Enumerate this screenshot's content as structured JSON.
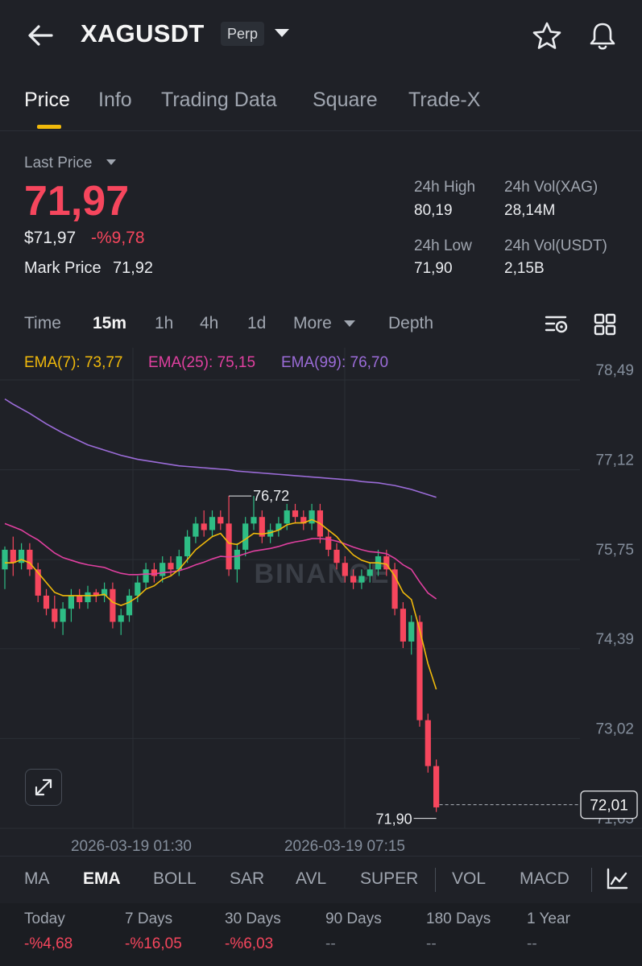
{
  "header": {
    "symbol": "XAGUSDT",
    "contract_badge": "Perp",
    "icons": [
      "back-arrow-icon",
      "chevron-down-icon",
      "star-icon",
      "bell-icon"
    ]
  },
  "tabs": [
    {
      "label": "Price",
      "active": true
    },
    {
      "label": "Info"
    },
    {
      "label": "Trading Data"
    },
    {
      "label": "Square"
    },
    {
      "label": "Trade-X"
    }
  ],
  "price": {
    "last_price_label": "Last Price",
    "last_price": "71,97",
    "usd_price": "$71,97",
    "change_pct": "-%9,78",
    "mark_price_label": "Mark Price",
    "mark_price": "71,92"
  },
  "stats": {
    "high_label": "24h High",
    "high": "80,19",
    "low_label": "24h Low",
    "low": "71,90",
    "vol_base_label": "24h Vol(XAG)",
    "vol_base": "28,14M",
    "vol_quote_label": "24h Vol(USDT)",
    "vol_quote": "2,15B"
  },
  "timeframes": [
    {
      "label": "Time"
    },
    {
      "label": "15m",
      "active": true
    },
    {
      "label": "1h"
    },
    {
      "label": "4h"
    },
    {
      "label": "1d"
    },
    {
      "label": "More"
    },
    {
      "label": "Depth"
    }
  ],
  "ema_legend": {
    "ema7": "EMA(7): 73,77",
    "ema25": "EMA(25): 75,15",
    "ema99": "EMA(99): 76,70"
  },
  "chart_data": {
    "type": "candlestick",
    "y_ticks": [
      "78,49",
      "77,12",
      "75,75",
      "74,39",
      "73,02",
      "71,65"
    ],
    "ylim": [
      71.65,
      78.49
    ],
    "x_ticks": [
      "2026-03-19 01:30",
      "2026-03-19 07:15"
    ],
    "high_annotation": "76,72",
    "low_annotation": "71,90",
    "current_price": "72,01",
    "watermark": "BINANCE",
    "candles": [
      [
        75.6,
        75.9,
        75.3,
        75.95
      ],
      [
        75.9,
        75.7,
        75.5,
        76.1
      ],
      [
        75.7,
        75.9,
        75.6,
        76.0
      ],
      [
        75.9,
        75.6,
        75.5,
        76.0
      ],
      [
        75.6,
        75.2,
        75.1,
        75.7
      ],
      [
        75.2,
        75.0,
        74.9,
        75.3
      ],
      [
        75.0,
        74.8,
        74.7,
        75.2
      ],
      [
        74.8,
        75.0,
        74.6,
        75.1
      ],
      [
        75.0,
        75.2,
        74.8,
        75.3
      ],
      [
        75.2,
        75.1,
        75.0,
        75.3
      ],
      [
        75.1,
        75.25,
        75.0,
        75.35
      ],
      [
        75.25,
        75.2,
        75.1,
        75.3
      ],
      [
        75.2,
        75.3,
        75.1,
        75.4
      ],
      [
        75.3,
        74.8,
        74.7,
        75.4
      ],
      [
        74.8,
        74.9,
        74.6,
        75.0
      ],
      [
        74.9,
        75.2,
        74.8,
        75.3
      ],
      [
        75.2,
        75.4,
        75.1,
        75.5
      ],
      [
        75.4,
        75.6,
        75.3,
        75.7
      ],
      [
        75.6,
        75.5,
        75.4,
        75.7
      ],
      [
        75.5,
        75.7,
        75.4,
        75.8
      ],
      [
        75.7,
        75.6,
        75.5,
        75.8
      ],
      [
        75.6,
        75.8,
        75.5,
        75.9
      ],
      [
        75.8,
        76.1,
        75.7,
        76.2
      ],
      [
        76.1,
        76.3,
        76.0,
        76.4
      ],
      [
        76.3,
        76.2,
        76.1,
        76.5
      ],
      [
        76.2,
        76.4,
        76.1,
        76.5
      ],
      [
        76.4,
        76.3,
        76.2,
        76.5
      ],
      [
        76.3,
        75.6,
        75.5,
        76.72
      ],
      [
        75.6,
        75.9,
        75.4,
        76.0
      ],
      [
        75.9,
        76.3,
        75.8,
        76.4
      ],
      [
        76.3,
        76.4,
        76.2,
        76.72
      ],
      [
        76.4,
        76.1,
        76.0,
        76.5
      ],
      [
        76.1,
        76.2,
        76.0,
        76.3
      ],
      [
        76.2,
        76.3,
        76.1,
        76.4
      ],
      [
        76.3,
        76.5,
        76.2,
        76.6
      ],
      [
        76.5,
        76.4,
        76.3,
        76.6
      ],
      [
        76.4,
        76.3,
        76.2,
        76.5
      ],
      [
        76.3,
        76.5,
        76.2,
        76.6
      ],
      [
        76.5,
        76.1,
        76.0,
        76.6
      ],
      [
        76.1,
        75.9,
        75.8,
        76.2
      ],
      [
        75.9,
        75.7,
        75.6,
        76.0
      ],
      [
        75.7,
        75.5,
        75.4,
        75.8
      ],
      [
        75.5,
        75.4,
        75.3,
        75.6
      ],
      [
        75.4,
        75.5,
        75.3,
        75.6
      ],
      [
        75.5,
        75.6,
        75.4,
        75.7
      ],
      [
        75.6,
        75.8,
        75.5,
        75.9
      ],
      [
        75.8,
        75.6,
        75.5,
        75.9
      ],
      [
        75.6,
        75.0,
        74.9,
        75.7
      ],
      [
        75.0,
        74.5,
        74.4,
        75.1
      ],
      [
        74.5,
        74.8,
        74.3,
        74.9
      ],
      [
        74.8,
        73.3,
        73.2,
        74.9
      ],
      [
        73.3,
        72.6,
        72.5,
        73.4
      ],
      [
        72.6,
        71.97,
        71.9,
        72.7
      ]
    ],
    "ema7": [
      75.7,
      75.7,
      75.75,
      75.7,
      75.55,
      75.4,
      75.25,
      75.2,
      75.2,
      75.2,
      75.2,
      75.2,
      75.22,
      75.1,
      75.05,
      75.1,
      75.18,
      75.3,
      75.35,
      75.45,
      75.5,
      75.6,
      75.75,
      75.9,
      76.0,
      76.1,
      76.15,
      76.0,
      75.98,
      76.06,
      76.15,
      76.14,
      76.16,
      76.2,
      76.28,
      76.31,
      76.31,
      76.36,
      76.3,
      76.2,
      76.1,
      75.95,
      75.82,
      75.74,
      75.7,
      75.7,
      75.68,
      75.5,
      75.25,
      75.14,
      74.68,
      74.16,
      73.77
    ],
    "ema25": [
      76.3,
      76.25,
      76.2,
      76.12,
      76.05,
      75.95,
      75.85,
      75.78,
      75.74,
      75.7,
      75.67,
      75.65,
      75.63,
      75.58,
      75.54,
      75.52,
      75.52,
      75.53,
      75.53,
      75.55,
      75.56,
      75.58,
      75.62,
      75.67,
      75.71,
      75.76,
      75.8,
      75.79,
      75.8,
      75.84,
      75.88,
      75.9,
      75.92,
      75.95,
      75.99,
      76.02,
      76.04,
      76.07,
      76.07,
      76.06,
      76.03,
      75.99,
      75.94,
      75.9,
      75.87,
      75.86,
      75.84,
      75.77,
      75.67,
      75.6,
      75.41,
      75.24,
      75.15
    ],
    "ema99": [
      78.2,
      78.12,
      78.05,
      77.98,
      77.9,
      77.82,
      77.75,
      77.68,
      77.62,
      77.56,
      77.5,
      77.46,
      77.42,
      77.38,
      77.34,
      77.31,
      77.28,
      77.26,
      77.24,
      77.22,
      77.2,
      77.18,
      77.17,
      77.16,
      77.15,
      77.14,
      77.13,
      77.12,
      77.1,
      77.09,
      77.08,
      77.07,
      77.06,
      77.05,
      77.04,
      77.03,
      77.02,
      77.01,
      77.0,
      76.99,
      76.98,
      76.97,
      76.96,
      76.94,
      76.93,
      76.92,
      76.9,
      76.88,
      76.85,
      76.82,
      76.78,
      76.74,
      76.7
    ],
    "colors": {
      "up": "#2ebd85",
      "down": "#f6465d",
      "ema7": "#f0b90b",
      "ema25": "#e040a0",
      "ema99": "#9b6cd8"
    }
  },
  "indicators": [
    {
      "label": "MA"
    },
    {
      "label": "EMA",
      "active": true
    },
    {
      "label": "BOLL"
    },
    {
      "label": "SAR"
    },
    {
      "label": "AVL"
    },
    {
      "label": "SUPER"
    },
    {
      "label": "VOL"
    },
    {
      "label": "MACD"
    }
  ],
  "performance": [
    {
      "label": "Today",
      "value": "-%4,68"
    },
    {
      "label": "7 Days",
      "value": "-%16,05"
    },
    {
      "label": "30 Days",
      "value": "-%6,03"
    },
    {
      "label": "90 Days",
      "value": "--"
    },
    {
      "label": "180 Days",
      "value": "--"
    },
    {
      "label": "1 Year",
      "value": "--"
    }
  ]
}
